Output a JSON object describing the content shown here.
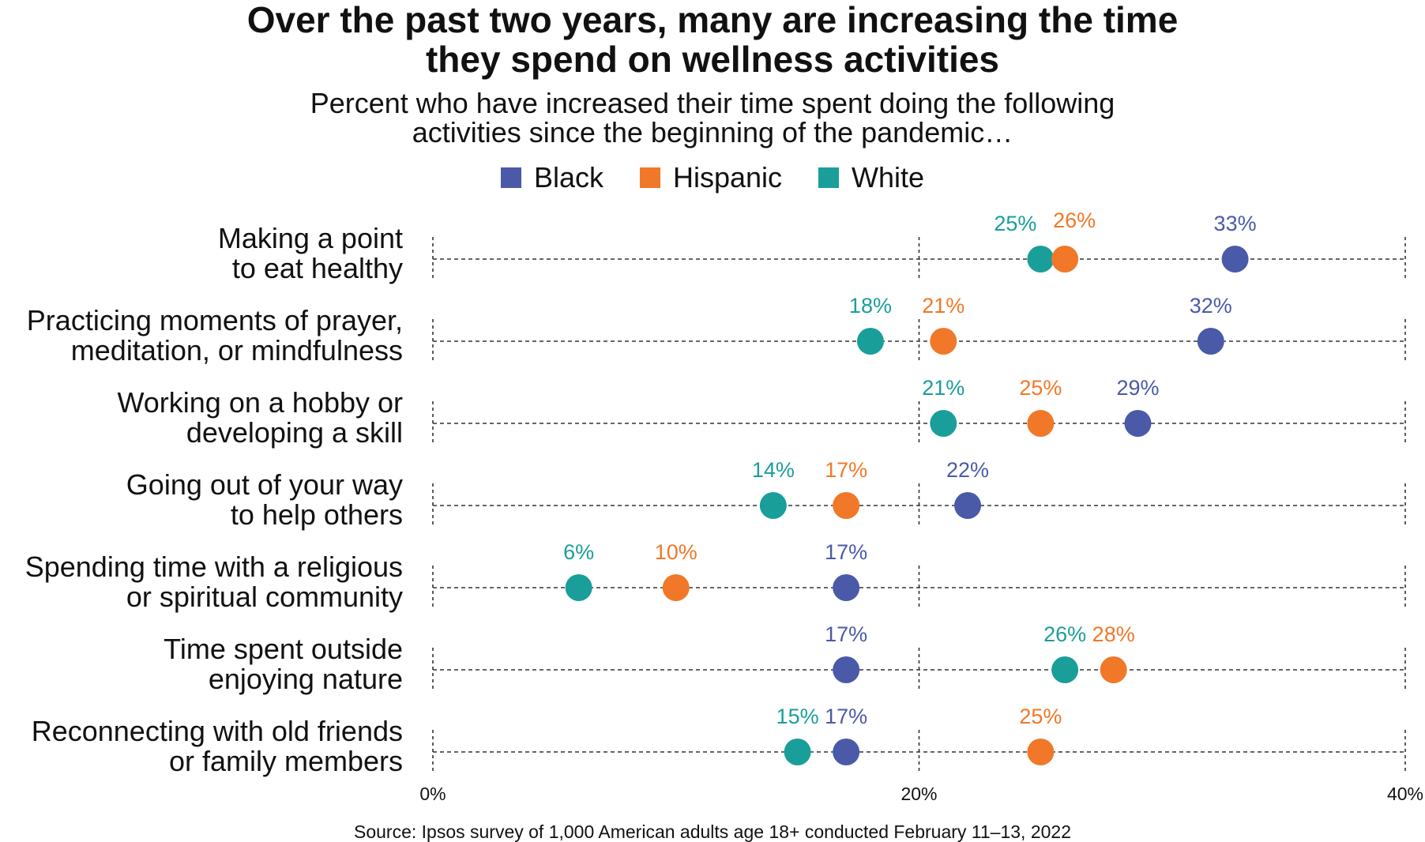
{
  "chart_data": {
    "type": "dot-plot",
    "title_lines": [
      "Over the past two years, many are increasing the time",
      "they spend on wellness activities"
    ],
    "subtitle_lines": [
      "Percent who have increased their time spent doing the following",
      "activities since the beginning of the pandemic…"
    ],
    "legend": [
      {
        "name": "Black",
        "color": "#4a5aa8"
      },
      {
        "name": "Hispanic",
        "color": "#f07828"
      },
      {
        "name": "White",
        "color": "#1a9e9a"
      }
    ],
    "xlim": [
      0,
      40
    ],
    "xticks": [
      {
        "value": 0,
        "label": "0%"
      },
      {
        "value": 20,
        "label": "20%"
      },
      {
        "value": 40,
        "label": "40%"
      }
    ],
    "categories": [
      {
        "lines": [
          "Making a point",
          "to eat healthy"
        ],
        "Black": 33,
        "Hispanic": 26,
        "White": 25
      },
      {
        "lines": [
          "Practicing moments of prayer,",
          "meditation, or mindfulness"
        ],
        "Black": 32,
        "Hispanic": 21,
        "White": 18
      },
      {
        "lines": [
          "Working on a hobby or",
          "developing a skill"
        ],
        "Black": 29,
        "Hispanic": 25,
        "White": 21
      },
      {
        "lines": [
          "Going out of your way",
          "to help others"
        ],
        "Black": 22,
        "Hispanic": 17,
        "White": 14
      },
      {
        "lines": [
          "Spending time with a religious",
          "or spiritual community"
        ],
        "Black": 17,
        "Hispanic": 10,
        "White": 6
      },
      {
        "lines": [
          "Time spent outside",
          "enjoying nature"
        ],
        "Black": 17,
        "Hispanic": 28,
        "White": 26
      },
      {
        "lines": [
          "Reconnecting with old friends",
          "or family members"
        ],
        "Black": 17,
        "Hispanic": 25,
        "White": 15
      }
    ],
    "source": "Source: Ipsos survey of 1,000 American adults age 18+ conducted February 11–13, 2022"
  }
}
